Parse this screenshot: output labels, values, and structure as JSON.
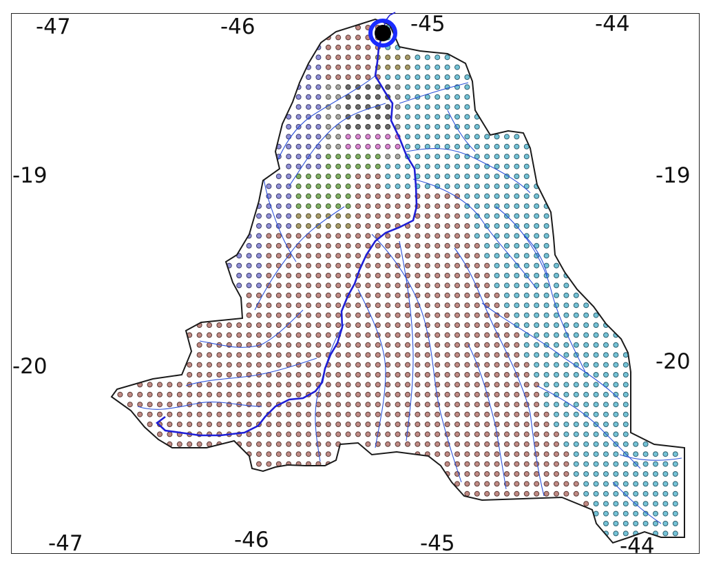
{
  "colors": {
    "boundary": "#1a1a1a",
    "main_river": "#1f1fd6",
    "tributary": "#2a4fd8",
    "outlet_ring": "#1a2bff",
    "outlet_center": "#000000",
    "frame": "#222222"
  },
  "categories": [
    {
      "id": "brown",
      "fill": "#c08a84",
      "stroke": "#5a3a36"
    },
    {
      "id": "teal",
      "fill": "#74c2d6",
      "stroke": "#2f5f6e"
    },
    {
      "id": "purple",
      "fill": "#8f8fd6",
      "stroke": "#3c3c6e"
    },
    {
      "id": "grey",
      "fill": "#a8a8a4",
      "stroke": "#555550"
    },
    {
      "id": "olive",
      "fill": "#a79a68",
      "stroke": "#55502f"
    },
    {
      "id": "green",
      "fill": "#7fae62",
      "stroke": "#3f5a2f"
    },
    {
      "id": "pink",
      "fill": "#d884cf",
      "stroke": "#6a3a64"
    },
    {
      "id": "darkgrey",
      "fill": "#6e6e6e",
      "stroke": "#333333"
    }
  ],
  "grid": {
    "spacing_degrees": 0.05
  },
  "markers": {
    "outlet": {
      "label": "outlet",
      "lon": -45.08,
      "lat": -18.0
    }
  },
  "axis_labels": {
    "top": [
      "-47",
      "-46",
      "-45",
      "-44"
    ],
    "bottom": [
      "-47",
      "-46",
      "-45",
      "-44"
    ],
    "left": [
      "-19",
      "-20"
    ],
    "right": [
      "-19",
      "-20"
    ]
  }
}
